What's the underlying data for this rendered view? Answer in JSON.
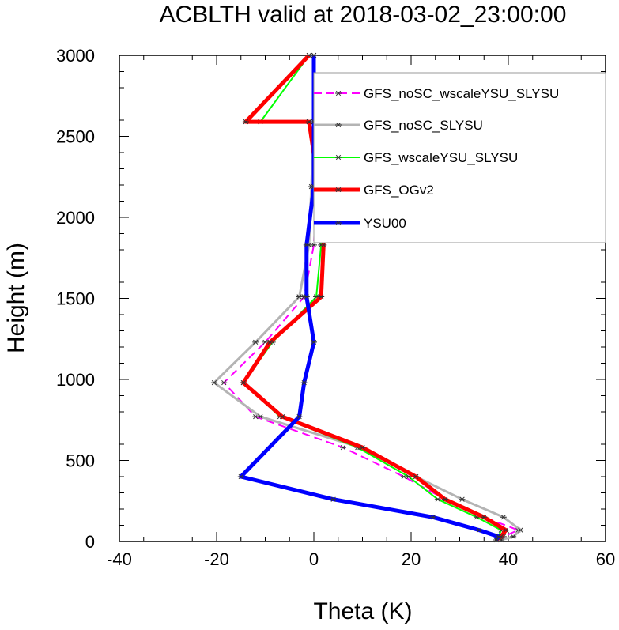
{
  "chart_data": {
    "type": "line",
    "title": "ACBLTH valid at 2018-03-02_23:00:00",
    "xlabel": "Theta (K)",
    "ylabel": "Height (m)",
    "xlim": [
      -40,
      60
    ],
    "ylim": [
      0,
      3000
    ],
    "xticks": [
      "-40",
      "-20",
      "0",
      "20",
      "40",
      "60"
    ],
    "yticks": [
      "0",
      "500",
      "1000",
      "1500",
      "2000",
      "2500",
      "3000"
    ],
    "legend_position": "upper-right",
    "series": [
      {
        "name": "GFS_noSC_wscaleYSU_SLYSU",
        "color": "#ff00ff",
        "dash": "dashed",
        "width": 2,
        "x": [
          37.5,
          39.0,
          42.0,
          35.0,
          27.0,
          18.5,
          6.0,
          -12.0,
          -18.5,
          -10.0,
          -2.0,
          0.0,
          0.5,
          0.0,
          0.0,
          0.0
        ],
        "y": [
          10,
          30,
          70,
          150,
          260,
          400,
          580,
          770,
          980,
          1230,
          1510,
          1830,
          2190,
          2590,
          3000,
          3000
        ]
      },
      {
        "name": "GFS_noSC_SLYSU",
        "color": "#b4b4b4",
        "dash": "solid",
        "width": 3,
        "x": [
          38.5,
          41.0,
          42.5,
          39.0,
          30.5,
          21.0,
          9.5,
          -11.0,
          -20.5,
          -12.0,
          -3.0,
          -1.0,
          -0.5,
          0.0,
          0.0,
          0.0
        ],
        "y": [
          10,
          30,
          70,
          150,
          260,
          400,
          580,
          770,
          980,
          1230,
          1510,
          1830,
          2190,
          2590,
          3000,
          3000
        ]
      },
      {
        "name": "GFS_wscaleYSU_SLYSU",
        "color": "#00ff00",
        "dash": "solid",
        "width": 2,
        "x": [
          37.5,
          38.0,
          38.5,
          33.5,
          25.5,
          19.5,
          9.0,
          -7.0,
          -14.5,
          -8.5,
          0.5,
          1.5,
          0.5,
          -1.0,
          -11.0,
          -1.0
        ],
        "y": [
          10,
          30,
          70,
          150,
          260,
          400,
          580,
          770,
          980,
          1230,
          1510,
          1830,
          2190,
          2590,
          2590,
          3000
        ]
      },
      {
        "name": "GFS_OGv2",
        "color": "#ff0000",
        "dash": "solid",
        "width": 5,
        "x": [
          37.5,
          38.5,
          39.5,
          35.0,
          27.0,
          21.0,
          10.0,
          -6.5,
          -14.5,
          -9.0,
          1.5,
          2.0,
          1.0,
          -1.0,
          -14.0,
          -1.0
        ],
        "y": [
          10,
          30,
          70,
          150,
          260,
          400,
          580,
          770,
          980,
          1230,
          1510,
          1830,
          2190,
          2590,
          2590,
          3000
        ]
      },
      {
        "name": "YSU00",
        "color": "#0000ff",
        "dash": "solid",
        "width": 5,
        "x": [
          37.5,
          38.0,
          34.0,
          24.5,
          4.0,
          -15.0,
          -3.0,
          -2.0,
          0.0,
          -1.5,
          -1.5,
          0.0,
          0.0,
          0.0
        ],
        "y": [
          10,
          30,
          70,
          150,
          260,
          400,
          770,
          980,
          1230,
          1510,
          1830,
          2190,
          2590,
          3000
        ]
      }
    ]
  }
}
